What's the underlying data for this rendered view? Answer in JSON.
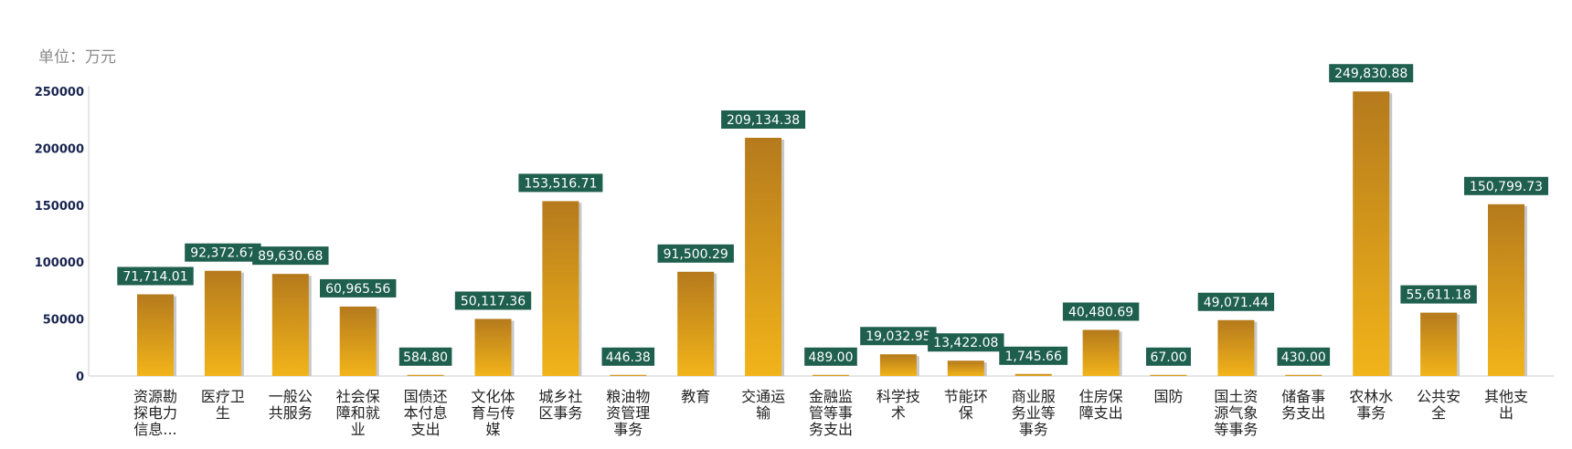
{
  "unit_label": "单位：万元",
  "chart_data": {
    "type": "bar",
    "ylim": [
      0,
      250000
    ],
    "y_ticks": [
      "250000",
      "200000",
      "150000",
      "100000",
      "50000",
      "0"
    ],
    "grid": false,
    "colors": {
      "bar_top": "#b57a1c",
      "bar_bottom": "#f2b41a",
      "bar_shadow": "#c8c8c8",
      "label_bg": "#1f5f4e",
      "label_text": "#ffffff",
      "axis": "#cccccc",
      "tick_text": "#1a2550"
    },
    "categories": [
      [
        "资源勘",
        "探电力",
        "信息..."
      ],
      [
        "医疗卫",
        "生"
      ],
      [
        "一般公",
        "共服务"
      ],
      [
        "社会保",
        "障和就",
        "业"
      ],
      [
        "国债还",
        "本付息",
        "支出"
      ],
      [
        "文化体",
        "育与传",
        "媒"
      ],
      [
        "城乡社",
        "区事务"
      ],
      [
        "粮油物",
        "资管理",
        "事务"
      ],
      [
        "教育"
      ],
      [
        "交通运",
        "输"
      ],
      [
        "金融监",
        "管等事",
        "务支出"
      ],
      [
        "科学技",
        "术"
      ],
      [
        "节能环",
        "保"
      ],
      [
        "商业服",
        "务业等",
        "事务"
      ],
      [
        "住房保",
        "障支出"
      ],
      [
        "国防"
      ],
      [
        "国土资",
        "源气象",
        "等事务"
      ],
      [
        "储备事",
        "务支出"
      ],
      [
        "农林水",
        "事务"
      ],
      [
        "公共安",
        "全"
      ],
      [
        "其他支",
        "出"
      ]
    ],
    "values": [
      71714.01,
      92372.67,
      89630.68,
      60965.56,
      584.8,
      50117.36,
      153516.71,
      446.38,
      91500.29,
      209134.38,
      489.0,
      19032.95,
      13422.08,
      1745.66,
      40480.69,
      67.0,
      49071.44,
      430.0,
      249830.88,
      55611.18,
      150799.73
    ],
    "data_labels": [
      "71,714.01",
      "92,372.67",
      "89,630.68",
      "60,965.56",
      "584.80",
      "50,117.36",
      "153,516.71",
      "446.38",
      "91,500.29",
      "209,134.38",
      "489.00",
      "19,032.95",
      "13,422.08",
      "1,745.66",
      "40,480.69",
      "67.00",
      "49,071.44",
      "430.00",
      "249,830.88",
      "55,611.18",
      "150,799.73"
    ]
  }
}
